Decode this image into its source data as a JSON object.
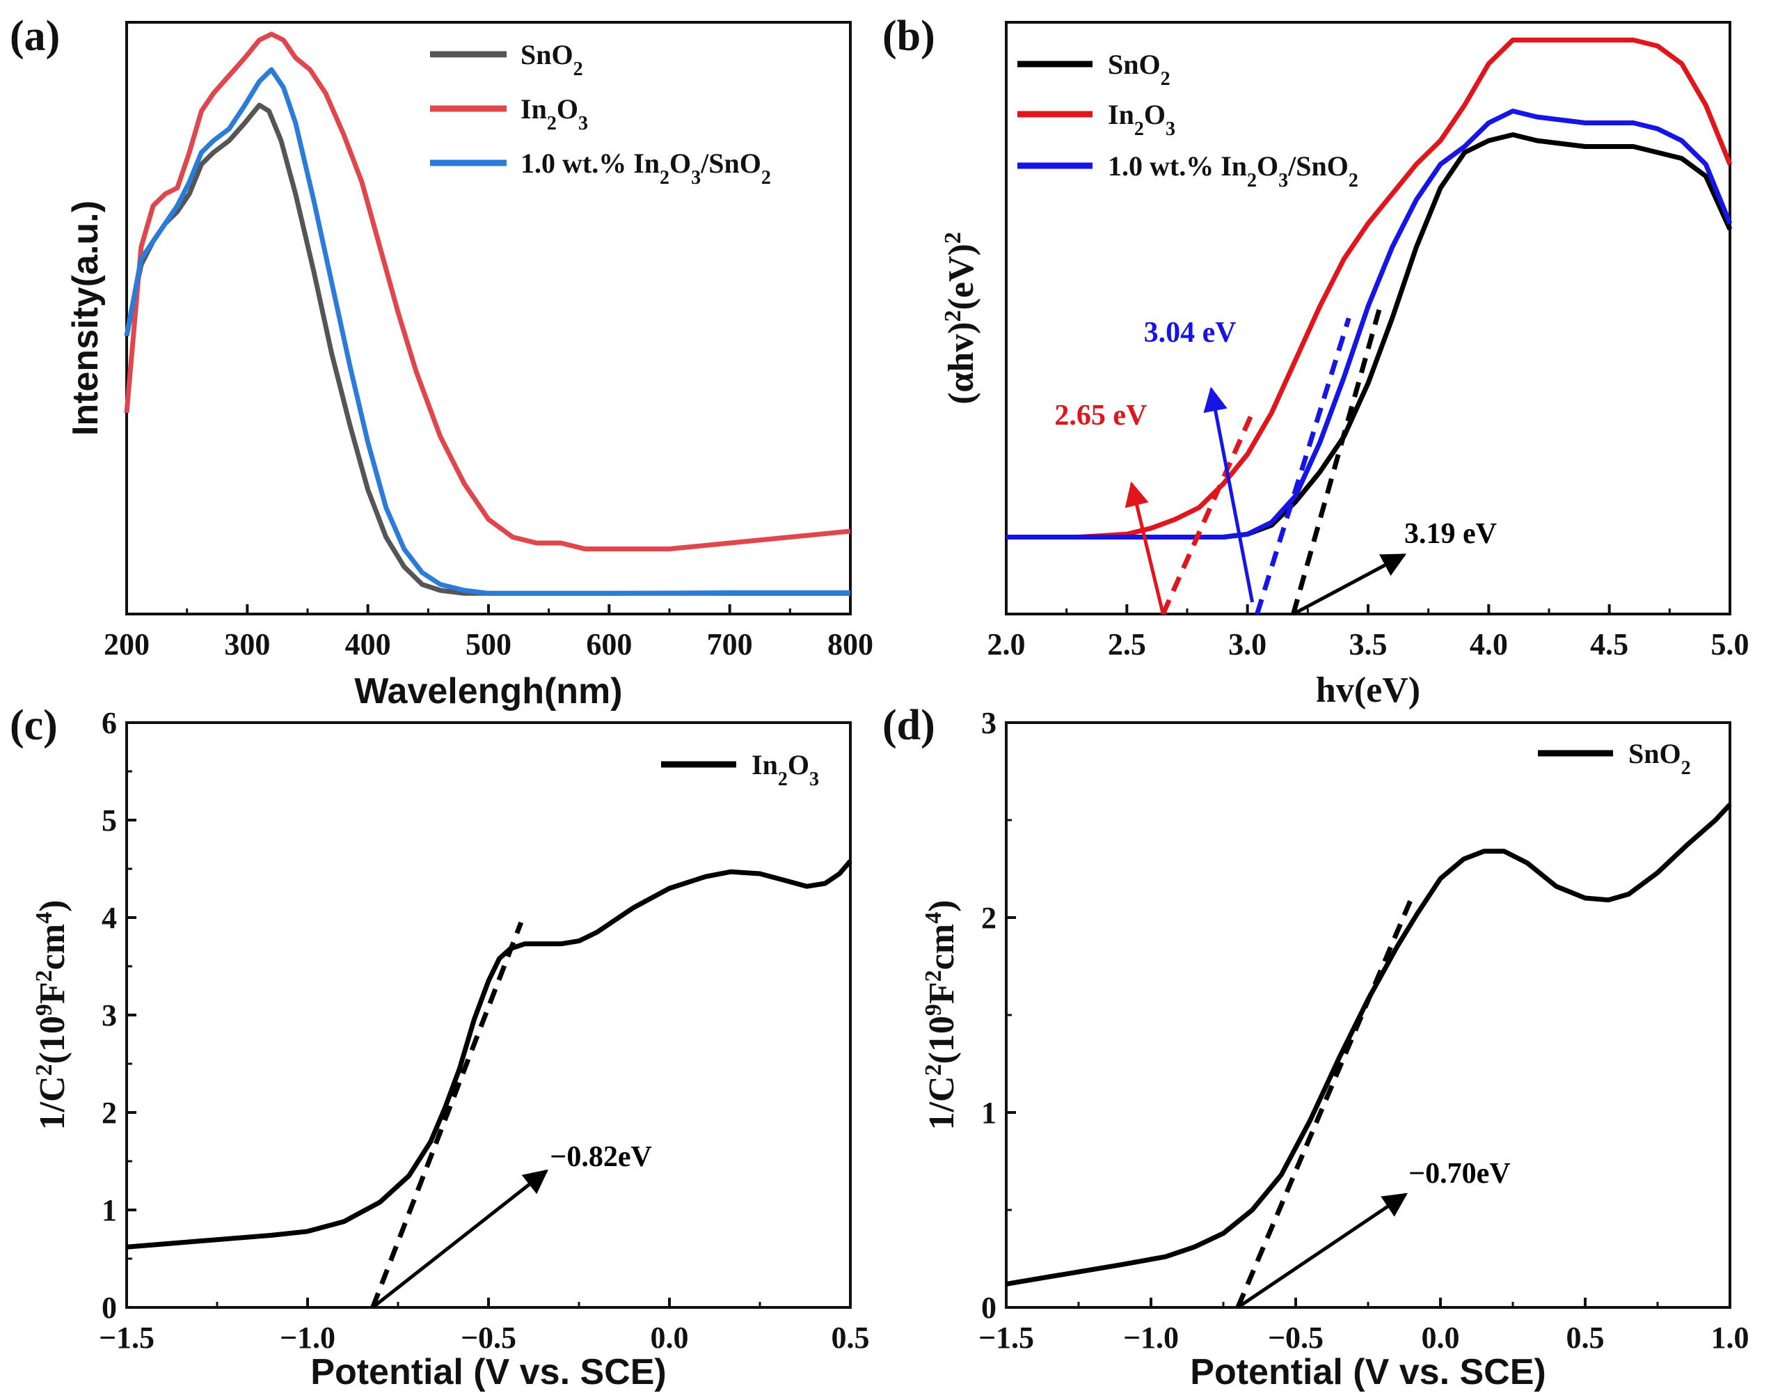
{
  "chart_data": [
    {
      "id": "a",
      "panel_label": "(a)",
      "type": "line",
      "xlabel": "Wavelengh(nm)",
      "ylabel": "Intensity(a.u.)",
      "xlim": [
        200,
        800
      ],
      "ylim": [
        0,
        1
      ],
      "xticks": [
        "200",
        "300",
        "400",
        "500",
        "600",
        "700",
        "800"
      ],
      "y_tick_labels": "none",
      "legend_position": "top-right",
      "series": [
        {
          "name": "SnO2",
          "legend_text": "SnO",
          "legend_sub": "2",
          "color": "#555555",
          "x": [
            200,
            212,
            222,
            232,
            242,
            252,
            262,
            272,
            285,
            298,
            310,
            318,
            328,
            340,
            355,
            370,
            385,
            400,
            415,
            430,
            445,
            460,
            480,
            500,
            600,
            700,
            800
          ],
          "y": [
            0.47,
            0.59,
            0.63,
            0.66,
            0.68,
            0.71,
            0.76,
            0.78,
            0.8,
            0.83,
            0.86,
            0.85,
            0.8,
            0.71,
            0.58,
            0.44,
            0.32,
            0.21,
            0.13,
            0.08,
            0.05,
            0.04,
            0.035,
            0.035,
            0.035,
            0.035,
            0.035
          ]
        },
        {
          "name": "In2O3",
          "legend_text": "In",
          "legend_sub": "2",
          "legend_text2": "O",
          "legend_sub2": "3",
          "color": "#e0474c",
          "x": [
            200,
            212,
            222,
            232,
            242,
            252,
            262,
            272,
            285,
            298,
            310,
            320,
            330,
            340,
            352,
            365,
            380,
            395,
            410,
            425,
            440,
            460,
            480,
            500,
            520,
            540,
            560,
            580,
            600,
            650,
            700,
            750,
            800
          ],
          "y": [
            0.34,
            0.62,
            0.69,
            0.71,
            0.72,
            0.78,
            0.85,
            0.88,
            0.91,
            0.94,
            0.97,
            0.98,
            0.97,
            0.94,
            0.92,
            0.88,
            0.81,
            0.73,
            0.62,
            0.51,
            0.41,
            0.3,
            0.22,
            0.16,
            0.13,
            0.12,
            0.12,
            0.11,
            0.11,
            0.11,
            0.12,
            0.13,
            0.14
          ]
        },
        {
          "name": "1.0 wt.% In2O3/SnO2",
          "legend_text": "1.0 wt.% In",
          "legend_sub": "2",
          "legend_text2": "O",
          "legend_sub2": "3",
          "legend_text3": "/SnO",
          "legend_sub3": "2",
          "color": "#2b7bd8",
          "x": [
            200,
            212,
            222,
            232,
            242,
            252,
            262,
            272,
            285,
            298,
            310,
            320,
            330,
            340,
            355,
            370,
            385,
            400,
            415,
            430,
            445,
            460,
            480,
            500,
            600,
            700,
            800
          ],
          "y": [
            0.47,
            0.6,
            0.63,
            0.66,
            0.69,
            0.73,
            0.78,
            0.8,
            0.82,
            0.86,
            0.9,
            0.92,
            0.89,
            0.83,
            0.7,
            0.56,
            0.42,
            0.29,
            0.18,
            0.11,
            0.07,
            0.05,
            0.04,
            0.035,
            0.035,
            0.036,
            0.036
          ]
        }
      ]
    },
    {
      "id": "b",
      "panel_label": "(b)",
      "type": "line",
      "xlabel": "hv(eV)",
      "ylabel": "(αhv)²(eV)²",
      "ylabel_main": "(αhv)",
      "ylabel_sup1": "2",
      "ylabel_mid": "(eV)",
      "ylabel_sup2": "2",
      "xlim": [
        2.0,
        5.0
      ],
      "ylim": [
        0,
        1
      ],
      "xticks": [
        "2.0",
        "2.5",
        "3.0",
        "3.5",
        "4.0",
        "4.5",
        "5.0"
      ],
      "y_tick_labels": "none",
      "legend_position": "top-left",
      "series": [
        {
          "name": "SnO2",
          "legend_text": "SnO",
          "legend_sub": "2",
          "color": "#000000",
          "x": [
            2.0,
            2.5,
            2.9,
            3.0,
            3.1,
            3.2,
            3.3,
            3.4,
            3.5,
            3.6,
            3.7,
            3.8,
            3.9,
            4.0,
            4.1,
            4.2,
            4.4,
            4.6,
            4.7,
            4.8,
            4.9,
            5.0
          ],
          "y": [
            0.13,
            0.13,
            0.13,
            0.135,
            0.15,
            0.19,
            0.24,
            0.3,
            0.39,
            0.5,
            0.62,
            0.72,
            0.78,
            0.8,
            0.81,
            0.8,
            0.79,
            0.79,
            0.78,
            0.77,
            0.74,
            0.65
          ]
        },
        {
          "name": "In2O3",
          "legend_text": "In",
          "legend_sub": "2",
          "legend_text2": "O",
          "legend_sub2": "3",
          "color": "#e0161c",
          "x": [
            2.0,
            2.3,
            2.5,
            2.6,
            2.7,
            2.8,
            2.9,
            3.0,
            3.1,
            3.2,
            3.3,
            3.4,
            3.5,
            3.6,
            3.7,
            3.8,
            3.9,
            4.0,
            4.1,
            4.3,
            4.5,
            4.6,
            4.7,
            4.8,
            4.9,
            5.0
          ],
          "y": [
            0.13,
            0.13,
            0.135,
            0.145,
            0.16,
            0.18,
            0.22,
            0.27,
            0.34,
            0.43,
            0.52,
            0.6,
            0.66,
            0.71,
            0.76,
            0.8,
            0.86,
            0.93,
            0.97,
            0.97,
            0.97,
            0.97,
            0.96,
            0.93,
            0.86,
            0.76
          ]
        },
        {
          "name": "1.0 wt.% In2O3/SnO2",
          "legend_text": "1.0 wt.% In",
          "legend_sub": "2",
          "legend_text2": "O",
          "legend_sub2": "3",
          "legend_text3": "/SnO",
          "legend_sub3": "2",
          "color": "#1515e6",
          "x": [
            2.0,
            2.5,
            2.9,
            3.0,
            3.1,
            3.2,
            3.3,
            3.4,
            3.5,
            3.6,
            3.7,
            3.8,
            3.9,
            4.0,
            4.1,
            4.2,
            4.4,
            4.6,
            4.7,
            4.8,
            4.9,
            5.0
          ],
          "y": [
            0.13,
            0.13,
            0.13,
            0.135,
            0.155,
            0.2,
            0.29,
            0.4,
            0.52,
            0.62,
            0.7,
            0.76,
            0.79,
            0.83,
            0.85,
            0.84,
            0.83,
            0.83,
            0.82,
            0.8,
            0.76,
            0.66
          ]
        }
      ],
      "tangents": [
        {
          "color": "#e0161c",
          "x0": 2.65,
          "x1": 3.02,
          "y1": 0.34
        },
        {
          "color": "#1515e6",
          "x0": 3.04,
          "x1": 3.42,
          "y1": 0.5
        },
        {
          "color": "#000000",
          "x0": 3.19,
          "x1": 3.55,
          "y1": 0.52
        }
      ],
      "annotations": [
        {
          "text": "2.65 eV",
          "color": "#e0161c",
          "tx": 2.2,
          "ty": 0.32,
          "ax0": 2.65,
          "ay0": 0.0,
          "ax1": 2.52,
          "ay1": 0.22
        },
        {
          "text": "3.04 eV",
          "color": "#1515e6",
          "tx": 2.57,
          "ty": 0.46,
          "ax0": 3.02,
          "ay0": 0.02,
          "ax1": 2.85,
          "ay1": 0.38
        },
        {
          "text": "3.19 eV",
          "color": "#000000",
          "tx": 3.65,
          "ty": 0.12,
          "ax0": 3.19,
          "ay0": 0.0,
          "ax1": 3.65,
          "ay1": 0.1
        }
      ]
    },
    {
      "id": "c",
      "panel_label": "(c)",
      "type": "line",
      "xlabel": "Potential (V vs. SCE)",
      "ylabel": "1/C²(10⁹F²cm⁴)",
      "ylabel_main": "1/C",
      "ylabel_sup1": "2",
      "ylabel_mid": "(10",
      "ylabel_sup2": "9",
      "ylabel_mid2": "F",
      "ylabel_sup3": "2",
      "ylabel_mid3": "cm",
      "ylabel_sup4": "4",
      "ylabel_end": ")",
      "xlim": [
        -1.5,
        0.5
      ],
      "ylim": [
        0,
        6
      ],
      "xticks": [
        "−1.5",
        "−1.0",
        "−0.5",
        "0.0",
        "0.5"
      ],
      "yticks": [
        "0",
        "1",
        "2",
        "3",
        "4",
        "5",
        "6"
      ],
      "legend_position": "top-right",
      "series": [
        {
          "name": "In2O3",
          "legend_text": "In",
          "legend_sub": "2",
          "legend_text2": "O",
          "legend_sub2": "3",
          "color": "#000000",
          "x": [
            -1.5,
            -1.3,
            -1.1,
            -1.0,
            -0.9,
            -0.8,
            -0.72,
            -0.66,
            -0.62,
            -0.58,
            -0.54,
            -0.5,
            -0.47,
            -0.44,
            -0.4,
            -0.35,
            -0.3,
            -0.25,
            -0.2,
            -0.1,
            0.0,
            0.1,
            0.17,
            0.25,
            0.32,
            0.38,
            0.43,
            0.47,
            0.5
          ],
          "y": [
            0.62,
            0.68,
            0.74,
            0.78,
            0.88,
            1.08,
            1.35,
            1.7,
            2.05,
            2.45,
            2.95,
            3.35,
            3.58,
            3.68,
            3.73,
            3.73,
            3.73,
            3.76,
            3.85,
            4.1,
            4.3,
            4.42,
            4.47,
            4.45,
            4.38,
            4.32,
            4.35,
            4.45,
            4.58
          ]
        }
      ],
      "tangents": [
        {
          "color": "#000000",
          "x0": -0.82,
          "x1": -0.41,
          "y1": 3.95
        }
      ],
      "annotations": [
        {
          "text": "−0.82eV",
          "color": "#000000",
          "tx": -0.33,
          "ty": 1.45,
          "ax0": -0.82,
          "ay0": 0.0,
          "ax1": -0.34,
          "ay1": 1.4
        }
      ]
    },
    {
      "id": "d",
      "panel_label": "(d)",
      "type": "line",
      "xlabel": "Potential (V vs. SCE)",
      "ylabel": "1/C²(10⁹F²cm⁴)",
      "ylabel_main": "1/C",
      "ylabel_sup1": "2",
      "ylabel_mid": "(10",
      "ylabel_sup2": "9",
      "ylabel_mid2": "F",
      "ylabel_sup3": "2",
      "ylabel_mid3": "cm",
      "ylabel_sup4": "4",
      "ylabel_end": ")",
      "xlim": [
        -1.5,
        1.0
      ],
      "ylim": [
        0,
        3
      ],
      "xticks": [
        "−1.5",
        "−1.0",
        "−0.5",
        "0.0",
        "0.5",
        "1.0"
      ],
      "yticks": [
        "0",
        "1",
        "2",
        "3"
      ],
      "legend_position": "top-right",
      "series": [
        {
          "name": "SnO2",
          "legend_text": "SnO",
          "legend_sub": "2",
          "color": "#000000",
          "x": [
            -1.5,
            -1.3,
            -1.1,
            -0.95,
            -0.85,
            -0.75,
            -0.65,
            -0.55,
            -0.45,
            -0.35,
            -0.25,
            -0.15,
            -0.08,
            0.0,
            0.08,
            0.15,
            0.22,
            0.3,
            0.4,
            0.5,
            0.58,
            0.65,
            0.75,
            0.85,
            0.95,
            1.0
          ],
          "y": [
            0.12,
            0.17,
            0.22,
            0.26,
            0.31,
            0.38,
            0.5,
            0.68,
            0.96,
            1.28,
            1.58,
            1.85,
            2.02,
            2.2,
            2.3,
            2.34,
            2.34,
            2.28,
            2.16,
            2.1,
            2.09,
            2.12,
            2.23,
            2.37,
            2.5,
            2.58
          ]
        }
      ],
      "tangents": [
        {
          "color": "#000000",
          "x0": -0.7,
          "x1": -0.1,
          "y1": 2.1
        }
      ],
      "annotations": [
        {
          "text": "−0.70eV",
          "color": "#000000",
          "tx": -0.11,
          "ty": 0.64,
          "ax0": -0.7,
          "ay0": 0.0,
          "ax1": -0.12,
          "ay1": 0.58
        }
      ]
    }
  ]
}
